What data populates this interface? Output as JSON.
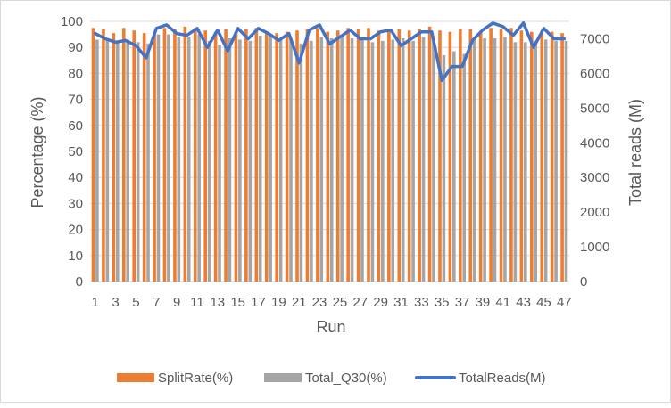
{
  "chart_data": {
    "type": "bar",
    "x": [
      1,
      2,
      3,
      4,
      5,
      6,
      7,
      8,
      9,
      10,
      11,
      12,
      13,
      14,
      15,
      16,
      17,
      18,
      19,
      20,
      21,
      22,
      23,
      24,
      25,
      26,
      27,
      28,
      29,
      30,
      31,
      32,
      33,
      34,
      35,
      36,
      37,
      38,
      39,
      40,
      41,
      42,
      43,
      44,
      45,
      46,
      47
    ],
    "x_tick_labels": [
      "1",
      "3",
      "5",
      "7",
      "9",
      "11",
      "13",
      "15",
      "17",
      "19",
      "21",
      "23",
      "25",
      "27",
      "29",
      "31",
      "33",
      "35",
      "37",
      "39",
      "41",
      "43",
      "45",
      "47"
    ],
    "xlabel": "Run",
    "ylabel": "Percentage (%)",
    "y2label": "Total reads (M)",
    "ylim": [
      0,
      100
    ],
    "y_ticks": [
      0,
      10,
      20,
      30,
      40,
      50,
      60,
      70,
      80,
      90,
      100
    ],
    "y2lim": [
      0,
      7500
    ],
    "y2_ticks": [
      0,
      1000,
      2000,
      3000,
      4000,
      5000,
      6000,
      7000
    ],
    "series": [
      {
        "name": "SplitRate(%)",
        "type": "bar",
        "axis": "left",
        "color": "#ed7d31",
        "values": [
          97.5,
          97.0,
          95.5,
          97.5,
          96.5,
          95.5,
          96.0,
          97.5,
          97.0,
          98.0,
          97.5,
          96.5,
          96.0,
          97.0,
          96.0,
          97.0,
          97.5,
          96.0,
          95.5,
          96.0,
          96.5,
          97.0,
          97.5,
          96.0,
          96.5,
          97.5,
          97.0,
          97.5,
          96.5,
          96.5,
          97.0,
          96.5,
          97.0,
          98.0,
          96.5,
          96.0,
          97.0,
          97.0,
          96.0,
          97.5,
          97.0,
          97.5,
          96.5,
          96.0,
          96.5,
          96.0,
          95.5
        ]
      },
      {
        "name": "Total_Q30(%)",
        "type": "bar",
        "axis": "left",
        "color": "#a5a5a5",
        "values": [
          93.0,
          93.5,
          92.5,
          93.0,
          92.0,
          91.5,
          95.0,
          95.0,
          94.0,
          94.0,
          95.0,
          92.5,
          91.0,
          93.5,
          93.0,
          92.5,
          94.5,
          95.0,
          93.0,
          93.5,
          91.5,
          92.5,
          94.0,
          93.5,
          94.0,
          93.5,
          93.0,
          92.0,
          92.5,
          93.0,
          93.5,
          92.5,
          94.0,
          93.5,
          87.0,
          88.5,
          87.5,
          93.0,
          93.5,
          93.5,
          94.0,
          92.0,
          92.0,
          92.5,
          93.0,
          92.5,
          92.5
        ]
      },
      {
        "name": "TotalReads(M)",
        "type": "line",
        "axis": "right",
        "color": "#4472c4",
        "values": [
          7150,
          7000,
          6900,
          6950,
          6800,
          6450,
          7300,
          7400,
          7150,
          7100,
          7300,
          6750,
          7250,
          6650,
          7300,
          7000,
          7300,
          7150,
          6950,
          7150,
          6300,
          7250,
          7400,
          6850,
          7050,
          7250,
          7000,
          7000,
          7200,
          7250,
          6800,
          7000,
          7200,
          7200,
          5800,
          6200,
          6200,
          6950,
          7250,
          7450,
          7350,
          7100,
          7450,
          6750,
          7300,
          7000,
          7000
        ]
      }
    ]
  }
}
